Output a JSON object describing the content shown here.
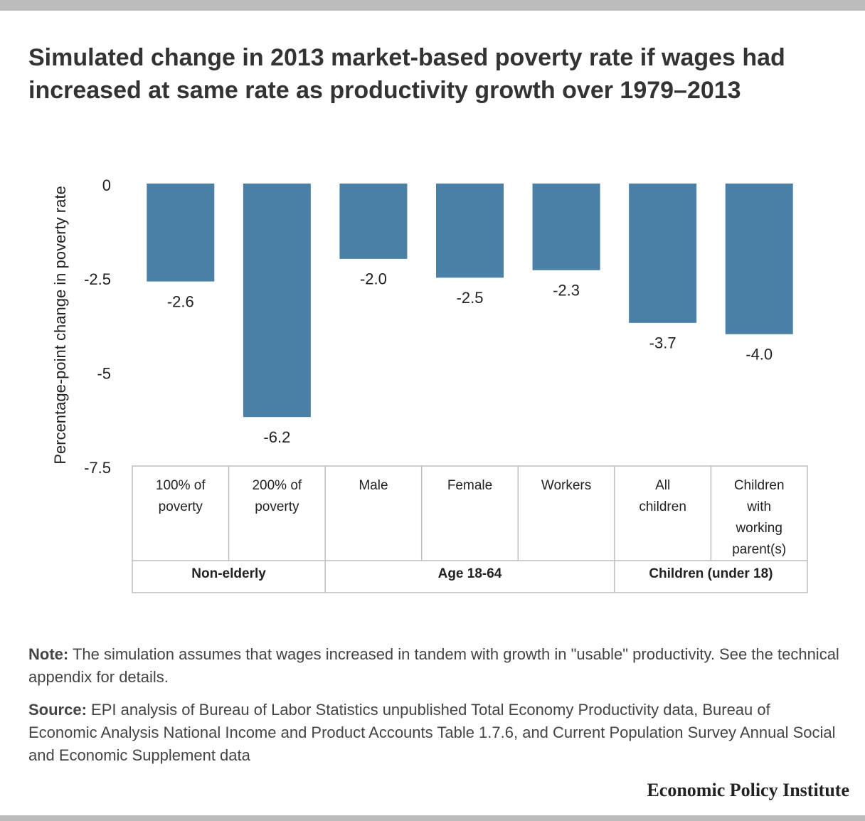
{
  "chart_data": {
    "type": "bar",
    "title": "Simulated change in 2013 market-based poverty rate if wages had increased at same rate as productivity growth over 1979–2013",
    "y_label": "Percentage-point change in poverty rate",
    "categories": [
      "100% of poverty",
      "200% of poverty",
      "Male",
      "Female",
      "Workers",
      "All children",
      "Children with working parent(s)"
    ],
    "groups": [
      "Non-elderly",
      "Age 18-64",
      "Children (under 18)"
    ],
    "values": [
      -2.6,
      -6.2,
      -2,
      -2.5,
      -2.3,
      -3.7,
      -4
    ],
    "value_labels": [
      "-2.6",
      "-6.2",
      "-2.0",
      "-2.5",
      "-2.3",
      "-3.7",
      "-4.0"
    ],
    "color": "#4a80a5",
    "ylim": [
      -7.5,
      0
    ],
    "yticks": [
      0,
      -2.5,
      -5,
      -7.5
    ],
    "note": {
      "label": "Note:",
      "text": "The simulation assumes that wages increased in tandem with growth in \"usable\" productivity. See the technical appendix for details."
    },
    "source": {
      "label": "Source:",
      "text": "EPI analysis of Bureau of Labor Statistics unpublished Total Economy Productivity data, Bureau of Economic Analysis National Income and Product Accounts Table 1.7.6, and Current Population Survey Annual Social and Economic Supplement data"
    },
    "footer": "Economic Policy Institute"
  }
}
